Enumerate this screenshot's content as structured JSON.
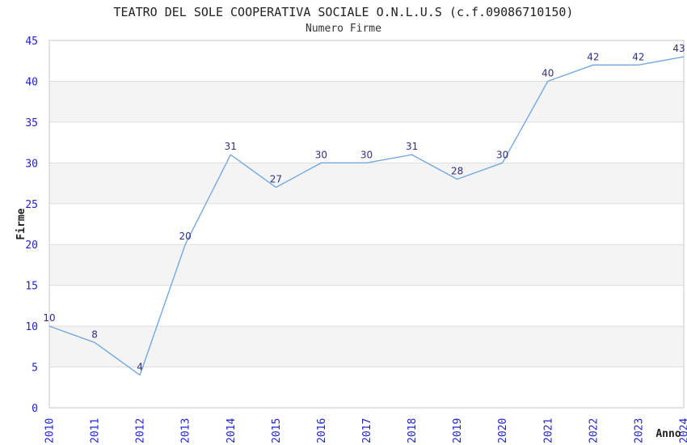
{
  "chart_data": {
    "type": "line",
    "title": "TEATRO DEL SOLE COOPERATIVA SOCIALE O.N.L.U.S (c.f.09086710150)",
    "subtitle": "Numero Firme",
    "xlabel": "Anno",
    "ylabel": "Firme",
    "categories": [
      "2010",
      "2011",
      "2012",
      "2013",
      "2014",
      "2015",
      "2016",
      "2017",
      "2018",
      "2019",
      "2020",
      "2021",
      "2022",
      "2023",
      "2024"
    ],
    "series": [
      {
        "name": "Numero Firme",
        "values": [
          10,
          8,
          4,
          20,
          31,
          27,
          30,
          30,
          31,
          28,
          30,
          40,
          42,
          42,
          43
        ]
      }
    ],
    "ylim": [
      0,
      45
    ],
    "ytick_step": 5,
    "yticks": [
      0,
      5,
      10,
      15,
      20,
      25,
      30,
      35,
      40,
      45
    ],
    "grid": true,
    "legend": "none",
    "data_labels": true,
    "band_fill_alternate": true,
    "colors": {
      "line": "#74a9e0",
      "tick_label": "#2222cc",
      "data_label": "#2f2f80",
      "band": "#f4f4f4",
      "gridline": "#dedede",
      "plot_border": "#d0d0d0",
      "title": "#222222",
      "axis_title": "#222222"
    }
  }
}
